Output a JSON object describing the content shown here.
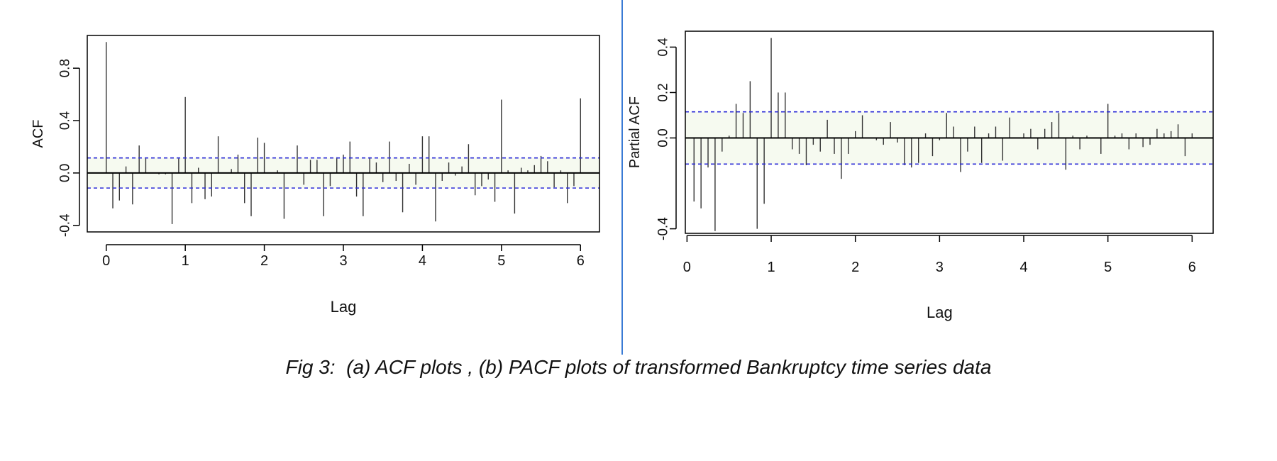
{
  "caption": "Fig 3:  (a) ACF plots , (b) PACF plots of transformed Bankruptcy time series data",
  "colors": {
    "axis": "#000000",
    "bars": "#333333",
    "confidence_band": "#2b2bd6",
    "band_fill": "#f6faf0",
    "divider": "#3a7bd5"
  },
  "chart_data": [
    {
      "type": "bar",
      "panel": "a",
      "ylabel": "ACF",
      "xlabel": "Lag",
      "xlim": [
        -0.24,
        6.24
      ],
      "ylim": [
        -0.45,
        1.05
      ],
      "x_ticks": [
        "0",
        "1",
        "2",
        "3",
        "4",
        "5",
        "6"
      ],
      "y_ticks": [
        -0.4,
        0.0,
        0.4,
        0.8
      ],
      "y_tick_labels": [
        "-0.4",
        "0.0",
        "0.4",
        "0.8"
      ],
      "confidence_limits": [
        0.115,
        -0.115
      ],
      "lags": [
        0.0,
        0.0833,
        0.1667,
        0.25,
        0.3333,
        0.4167,
        0.5,
        0.5833,
        0.6667,
        0.75,
        0.8333,
        0.9167,
        1.0,
        1.0833,
        1.1667,
        1.25,
        1.3333,
        1.4167,
        1.5,
        1.5833,
        1.6667,
        1.75,
        1.8333,
        1.9167,
        2.0,
        2.0833,
        2.1667,
        2.25,
        2.3333,
        2.4167,
        2.5,
        2.5833,
        2.6667,
        2.75,
        2.8333,
        2.9167,
        3.0,
        3.0833,
        3.1667,
        3.25,
        3.3333,
        3.4167,
        3.5,
        3.5833,
        3.6667,
        3.75,
        3.8333,
        3.9167,
        4.0,
        4.0833,
        4.1667,
        4.25,
        4.3333,
        4.4167,
        4.5,
        4.5833,
        4.6667,
        4.75,
        4.8333,
        4.9167,
        5.0,
        5.0833,
        5.1667,
        5.25,
        5.3333,
        5.4167,
        5.5,
        5.5833,
        5.6667,
        5.75,
        5.8333,
        5.9167,
        6.0
      ],
      "values": [
        1.0,
        -0.27,
        -0.21,
        0.05,
        -0.24,
        0.21,
        0.11,
        0.0,
        -0.01,
        -0.01,
        -0.39,
        0.11,
        0.58,
        -0.23,
        0.04,
        -0.2,
        -0.18,
        0.28,
        0.0,
        0.03,
        0.14,
        -0.23,
        -0.33,
        0.27,
        0.23,
        0.0,
        0.02,
        -0.35,
        0.0,
        0.21,
        -0.09,
        0.1,
        0.1,
        -0.33,
        -0.1,
        0.12,
        0.14,
        0.24,
        -0.18,
        -0.33,
        0.12,
        0.08,
        -0.07,
        0.24,
        -0.06,
        -0.3,
        0.07,
        -0.09,
        0.28,
        0.28,
        -0.37,
        -0.06,
        0.08,
        -0.02,
        0.05,
        0.22,
        -0.17,
        -0.1,
        -0.05,
        -0.22,
        0.56,
        0.02,
        -0.31,
        0.04,
        0.02,
        0.06,
        0.13,
        0.09,
        -0.11,
        0.02,
        -0.23,
        -0.1,
        0.57
      ]
    },
    {
      "type": "bar",
      "panel": "b",
      "ylabel": "Partial ACF",
      "xlabel": "Lag",
      "xlim": [
        -0.02,
        6.25
      ],
      "ylim": [
        -0.42,
        0.47
      ],
      "x_ticks": [
        "0",
        "1",
        "2",
        "3",
        "4",
        "5",
        "6"
      ],
      "y_ticks": [
        -0.4,
        0.0,
        0.2,
        0.4
      ],
      "y_tick_labels": [
        "-0.4",
        "0.0",
        "0.2",
        "0.4"
      ],
      "confidence_limits": [
        0.115,
        -0.115
      ],
      "lags": [
        0.0833,
        0.1667,
        0.25,
        0.3333,
        0.4167,
        0.5,
        0.5833,
        0.6667,
        0.75,
        0.8333,
        0.9167,
        1.0,
        1.0833,
        1.1667,
        1.25,
        1.3333,
        1.4167,
        1.5,
        1.5833,
        1.6667,
        1.75,
        1.8333,
        1.9167,
        2.0,
        2.0833,
        2.1667,
        2.25,
        2.3333,
        2.4167,
        2.5,
        2.5833,
        2.6667,
        2.75,
        2.8333,
        2.9167,
        3.0,
        3.0833,
        3.1667,
        3.25,
        3.3333,
        3.4167,
        3.5,
        3.5833,
        3.6667,
        3.75,
        3.8333,
        3.9167,
        4.0,
        4.0833,
        4.1667,
        4.25,
        4.3333,
        4.4167,
        4.5,
        4.5833,
        4.6667,
        4.75,
        4.8333,
        4.9167,
        5.0,
        5.0833,
        5.1667,
        5.25,
        5.3333,
        5.4167,
        5.5,
        5.5833,
        5.6667,
        5.75,
        5.8333,
        5.9167,
        6.0
      ],
      "values": [
        -0.28,
        -0.31,
        -0.13,
        -0.41,
        -0.06,
        0.01,
        0.15,
        0.11,
        0.25,
        -0.4,
        -0.29,
        0.44,
        0.2,
        0.2,
        -0.05,
        -0.07,
        -0.12,
        -0.03,
        -0.06,
        0.08,
        -0.07,
        -0.18,
        -0.07,
        0.03,
        0.1,
        0.0,
        -0.01,
        -0.03,
        0.07,
        -0.02,
        -0.12,
        -0.13,
        -0.11,
        0.02,
        -0.08,
        -0.01,
        0.11,
        0.05,
        -0.15,
        -0.06,
        0.05,
        -0.11,
        0.02,
        0.05,
        -0.1,
        0.09,
        0.0,
        0.02,
        0.04,
        -0.05,
        0.04,
        0.07,
        0.11,
        -0.14,
        0.01,
        -0.05,
        0.01,
        0.0,
        -0.07,
        0.15,
        0.01,
        0.02,
        -0.05,
        0.02,
        -0.04,
        -0.03,
        0.04,
        0.02,
        0.03,
        0.06,
        -0.08,
        0.02
      ]
    }
  ]
}
